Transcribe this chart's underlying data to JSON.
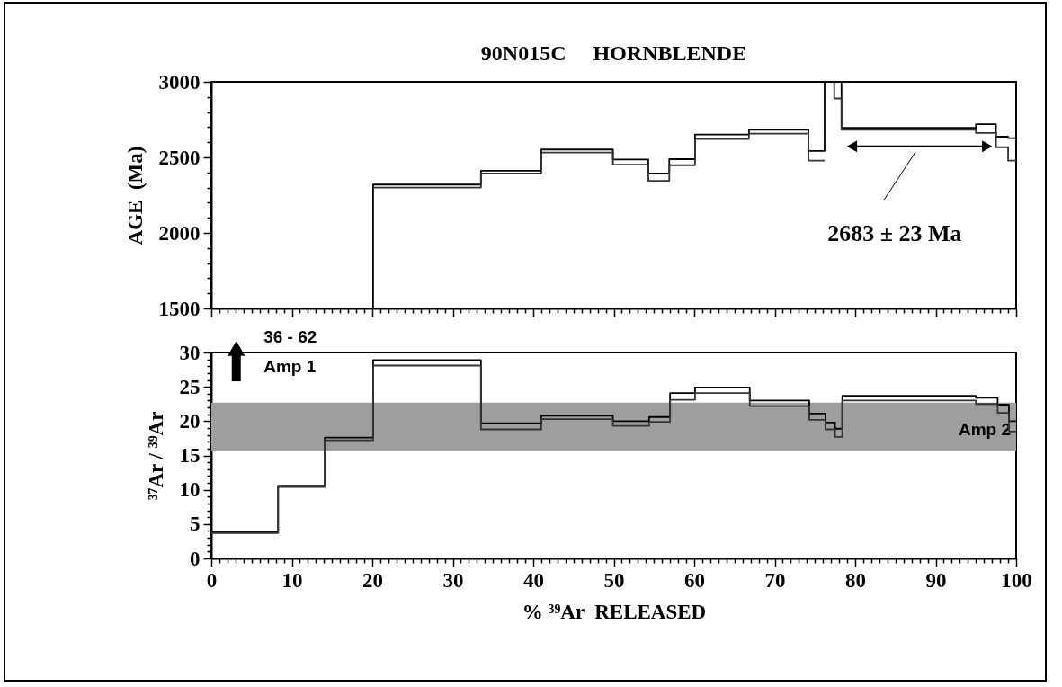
{
  "chart_data": [
    {
      "type": "line",
      "title": "90N015C     HORNBLENDE",
      "ylabel": "AGE  (Ma)",
      "tick_labels": "y",
      "xlim": [
        0,
        100
      ],
      "ylim": [
        1500,
        3000
      ],
      "xticks": [
        0,
        {
          "value": 1,
          "label": null
        },
        {
          "value": 2,
          "label": null
        },
        {
          "value": 3,
          "label": null
        },
        {
          "value": 4,
          "label": null
        },
        {
          "value": 5,
          "label": null
        },
        {
          "value": 6,
          "label": null
        },
        {
          "value": 7,
          "label": null
        },
        {
          "value": 8,
          "label": null
        },
        {
          "value": 9,
          "label": null
        },
        10,
        {
          "value": 11,
          "label": null
        },
        {
          "value": 12,
          "label": null
        },
        {
          "value": 13,
          "label": null
        },
        {
          "value": 14,
          "label": null
        },
        {
          "value": 15,
          "label": null
        },
        {
          "value": 16,
          "label": null
        },
        {
          "value": 17,
          "label": null
        },
        {
          "value": 18,
          "label": null
        },
        {
          "value": 19,
          "label": null
        },
        20,
        {
          "value": 21,
          "label": null
        },
        {
          "value": 22,
          "label": null
        },
        {
          "value": 23,
          "label": null
        },
        {
          "value": 24,
          "label": null
        },
        {
          "value": 25,
          "label": null
        },
        {
          "value": 26,
          "label": null
        },
        {
          "value": 27,
          "label": null
        },
        {
          "value": 28,
          "label": null
        },
        {
          "value": 29,
          "label": null
        },
        30,
        {
          "value": 31,
          "label": null
        },
        {
          "value": 32,
          "label": null
        },
        {
          "value": 33,
          "label": null
        },
        {
          "value": 34,
          "label": null
        },
        {
          "value": 35,
          "label": null
        },
        {
          "value": 36,
          "label": null
        },
        {
          "value": 37,
          "label": null
        },
        {
          "value": 38,
          "label": null
        },
        {
          "value": 39,
          "label": null
        },
        40,
        {
          "value": 41,
          "label": null
        },
        {
          "value": 42,
          "label": null
        },
        {
          "value": 43,
          "label": null
        },
        {
          "value": 44,
          "label": null
        },
        {
          "value": 45,
          "label": null
        },
        {
          "value": 46,
          "label": null
        },
        {
          "value": 47,
          "label": null
        },
        {
          "value": 48,
          "label": null
        },
        {
          "value": 49,
          "label": null
        },
        50,
        {
          "value": 51,
          "label": null
        },
        {
          "value": 52,
          "label": null
        },
        {
          "value": 53,
          "label": null
        },
        {
          "value": 54,
          "label": null
        },
        {
          "value": 55,
          "label": null
        },
        {
          "value": 56,
          "label": null
        },
        {
          "value": 57,
          "label": null
        },
        {
          "value": 58,
          "label": null
        },
        {
          "value": 59,
          "label": null
        },
        60,
        {
          "value": 61,
          "label": null
        },
        {
          "value": 62,
          "label": null
        },
        {
          "value": 63,
          "label": null
        },
        {
          "value": 64,
          "label": null
        },
        {
          "value": 65,
          "label": null
        },
        {
          "value": 66,
          "label": null
        },
        {
          "value": 67,
          "label": null
        },
        {
          "value": 68,
          "label": null
        },
        {
          "value": 69,
          "label": null
        },
        70,
        {
          "value": 71,
          "label": null
        },
        {
          "value": 72,
          "label": null
        },
        {
          "value": 73,
          "label": null
        },
        {
          "value": 74,
          "label": null
        },
        {
          "value": 75,
          "label": null
        },
        {
          "value": 76,
          "label": null
        },
        {
          "value": 77,
          "label": null
        },
        {
          "value": 78,
          "label": null
        },
        {
          "value": 79,
          "label": null
        },
        80,
        {
          "value": 81,
          "label": null
        },
        {
          "value": 82,
          "label": null
        },
        {
          "value": 83,
          "label": null
        },
        {
          "value": 84,
          "label": null
        },
        {
          "value": 85,
          "label": null
        },
        {
          "value": 86,
          "label": null
        },
        {
          "value": 87,
          "label": null
        },
        {
          "value": 88,
          "label": null
        },
        {
          "value": 89,
          "label": null
        },
        90,
        {
          "value": 91,
          "label": null
        },
        {
          "value": 92,
          "label": null
        },
        {
          "value": 93,
          "label": null
        },
        {
          "value": 94,
          "label": null
        },
        {
          "value": 95,
          "label": null
        },
        {
          "value": 96,
          "label": null
        },
        {
          "value": 97,
          "label": null
        },
        {
          "value": 98,
          "label": null
        },
        {
          "value": 99,
          "label": null
        },
        100
      ],
      "yticks": [
        1500,
        {
          "value": 1600,
          "label": null
        },
        {
          "value": 1700,
          "label": null
        },
        {
          "value": 1800,
          "label": null
        },
        {
          "value": 1900,
          "label": null
        },
        2000,
        {
          "value": 2100,
          "label": null
        },
        {
          "value": 2200,
          "label": null
        },
        {
          "value": 2300,
          "label": null
        },
        {
          "value": 2400,
          "label": null
        },
        2500,
        {
          "value": 2600,
          "label": null
        },
        {
          "value": 2700,
          "label": null
        },
        {
          "value": 2800,
          "label": null
        },
        {
          "value": 2900,
          "label": null
        },
        3000
      ],
      "series": [
        {
          "color": "#000000",
          "x": [
            20.1,
            20.1,
            33.5,
            33.5,
            41.0,
            41.0,
            49.9,
            49.9,
            54.3,
            54.3,
            56.9,
            56.9,
            60.1,
            60.1,
            66.8,
            66.8,
            74.2,
            74.2,
            76.2,
            76.2,
            77.0,
            78.3,
            78.3,
            95.0,
            95.0,
            97.5,
            97.5,
            99.0,
            99.0,
            100
          ],
          "values": [
            1500,
            2320,
            2320,
            2411,
            2411,
            2552,
            2552,
            2486,
            2486,
            2393,
            2393,
            2488,
            2488,
            2651,
            2651,
            2683,
            2683,
            2542,
            2542,
            3000,
            null,
            3000,
            2696,
            2696,
            2720,
            2720,
            2637,
            2637,
            2627,
            2627
          ]
        },
        {
          "color": "#333333",
          "x": [
            20.1,
            33.5,
            33.5,
            41.0,
            41.0,
            49.9,
            49.9,
            54.3,
            54.3,
            56.9,
            56.9,
            60.1,
            60.1,
            66.8,
            66.8,
            74.2,
            74.2,
            76.2,
            76.8,
            77.4,
            77.4,
            78.3,
            78.3,
            95.0,
            95.0,
            97.5,
            97.5,
            99.0,
            99.0,
            100
          ],
          "values": [
            2300,
            2300,
            2393,
            2393,
            2532,
            2532,
            2452,
            2452,
            2345,
            2345,
            2448,
            2448,
            2621,
            2621,
            2657,
            2657,
            2478,
            2478,
            null,
            3000,
            2890,
            2890,
            2683,
            2683,
            2661,
            2661,
            2567,
            2567,
            2478,
            2478
          ]
        }
      ],
      "annotations": [
        "2683 ± 23 Ma"
      ]
    },
    {
      "type": "line",
      "xlabel": "% ³⁹Ar  RELEASED",
      "ylabel": "³⁷Ar / ³⁹Ar",
      "xlim": [
        0,
        100
      ],
      "ylim": [
        0,
        30
      ],
      "xticks": [
        0,
        {
          "value": 1,
          "label": null
        },
        {
          "value": 2,
          "label": null
        },
        {
          "value": 3,
          "label": null
        },
        {
          "value": 4,
          "label": null
        },
        {
          "value": 5,
          "label": null
        },
        {
          "value": 6,
          "label": null
        },
        {
          "value": 7,
          "label": null
        },
        {
          "value": 8,
          "label": null
        },
        {
          "value": 9,
          "label": null
        },
        10,
        {
          "value": 11,
          "label": null
        },
        {
          "value": 12,
          "label": null
        },
        {
          "value": 13,
          "label": null
        },
        {
          "value": 14,
          "label": null
        },
        {
          "value": 15,
          "label": null
        },
        {
          "value": 16,
          "label": null
        },
        {
          "value": 17,
          "label": null
        },
        {
          "value": 18,
          "label": null
        },
        {
          "value": 19,
          "label": null
        },
        20,
        {
          "value": 21,
          "label": null
        },
        {
          "value": 22,
          "label": null
        },
        {
          "value": 23,
          "label": null
        },
        {
          "value": 24,
          "label": null
        },
        {
          "value": 25,
          "label": null
        },
        {
          "value": 26,
          "label": null
        },
        {
          "value": 27,
          "label": null
        },
        {
          "value": 28,
          "label": null
        },
        {
          "value": 29,
          "label": null
        },
        30,
        {
          "value": 31,
          "label": null
        },
        {
          "value": 32,
          "label": null
        },
        {
          "value": 33,
          "label": null
        },
        {
          "value": 34,
          "label": null
        },
        {
          "value": 35,
          "label": null
        },
        {
          "value": 36,
          "label": null
        },
        {
          "value": 37,
          "label": null
        },
        {
          "value": 38,
          "label": null
        },
        {
          "value": 39,
          "label": null
        },
        40,
        {
          "value": 41,
          "label": null
        },
        {
          "value": 42,
          "label": null
        },
        {
          "value": 43,
          "label": null
        },
        {
          "value": 44,
          "label": null
        },
        {
          "value": 45,
          "label": null
        },
        {
          "value": 46,
          "label": null
        },
        {
          "value": 47,
          "label": null
        },
        {
          "value": 48,
          "label": null
        },
        {
          "value": 49,
          "label": null
        },
        50,
        {
          "value": 51,
          "label": null
        },
        {
          "value": 52,
          "label": null
        },
        {
          "value": 53,
          "label": null
        },
        {
          "value": 54,
          "label": null
        },
        {
          "value": 55,
          "label": null
        },
        {
          "value": 56,
          "label": null
        },
        {
          "value": 57,
          "label": null
        },
        {
          "value": 58,
          "label": null
        },
        {
          "value": 59,
          "label": null
        },
        60,
        {
          "value": 61,
          "label": null
        },
        {
          "value": 62,
          "label": null
        },
        {
          "value": 63,
          "label": null
        },
        {
          "value": 64,
          "label": null
        },
        {
          "value": 65,
          "label": null
        },
        {
          "value": 66,
          "label": null
        },
        {
          "value": 67,
          "label": null
        },
        {
          "value": 68,
          "label": null
        },
        {
          "value": 69,
          "label": null
        },
        70,
        {
          "value": 71,
          "label": null
        },
        {
          "value": 72,
          "label": null
        },
        {
          "value": 73,
          "label": null
        },
        {
          "value": 74,
          "label": null
        },
        {
          "value": 75,
          "label": null
        },
        {
          "value": 76,
          "label": null
        },
        {
          "value": 77,
          "label": null
        },
        {
          "value": 78,
          "label": null
        },
        {
          "value": 79,
          "label": null
        },
        80,
        {
          "value": 81,
          "label": null
        },
        {
          "value": 82,
          "label": null
        },
        {
          "value": 83,
          "label": null
        },
        {
          "value": 84,
          "label": null
        },
        {
          "value": 85,
          "label": null
        },
        {
          "value": 86,
          "label": null
        },
        {
          "value": 87,
          "label": null
        },
        {
          "value": 88,
          "label": null
        },
        {
          "value": 89,
          "label": null
        },
        90,
        {
          "value": 91,
          "label": null
        },
        {
          "value": 92,
          "label": null
        },
        {
          "value": 93,
          "label": null
        },
        {
          "value": 94,
          "label": null
        },
        {
          "value": 95,
          "label": null
        },
        {
          "value": 96,
          "label": null
        },
        {
          "value": 97,
          "label": null
        },
        {
          "value": 98,
          "label": null
        },
        {
          "value": 99,
          "label": null
        },
        100
      ],
      "yticks": [
        0,
        {
          "value": 1,
          "label": null
        },
        {
          "value": 2,
          "label": null
        },
        {
          "value": 3,
          "label": null
        },
        {
          "value": 4,
          "label": null
        },
        5,
        {
          "value": 6,
          "label": null
        },
        {
          "value": 7,
          "label": null
        },
        {
          "value": 8,
          "label": null
        },
        {
          "value": 9,
          "label": null
        },
        10,
        {
          "value": 11,
          "label": null
        },
        {
          "value": 12,
          "label": null
        },
        {
          "value": 13,
          "label": null
        },
        {
          "value": 14,
          "label": null
        },
        15,
        {
          "value": 16,
          "label": null
        },
        {
          "value": 17,
          "label": null
        },
        {
          "value": 18,
          "label": null
        },
        {
          "value": 19,
          "label": null
        },
        20,
        {
          "value": 21,
          "label": null
        },
        {
          "value": 22,
          "label": null
        },
        {
          "value": 23,
          "label": null
        },
        {
          "value": 24,
          "label": null
        },
        25,
        {
          "value": 26,
          "label": null
        },
        {
          "value": 27,
          "label": null
        },
        {
          "value": 28,
          "label": null
        },
        {
          "value": 29,
          "label": null
        },
        30
      ],
      "series": [
        {
          "color": "#000000",
          "x": [
            0,
            8.3,
            8.3,
            14.1,
            14.1,
            20.1,
            20.1,
            33.5,
            33.5,
            41.0,
            41.0,
            49.9,
            49.9,
            54.4,
            54.4,
            57.0,
            57.0,
            60.1,
            60.1,
            66.9,
            66.9,
            74.3,
            74.3,
            76.3,
            76.3,
            77.5,
            77.5,
            78.4,
            78.4,
            95.0,
            95.0,
            97.7,
            97.7,
            99.1,
            99.1,
            100
          ],
          "values": [
            3.9,
            3.9,
            10.6,
            10.6,
            17.6,
            17.6,
            28.9,
            28.9,
            19.7,
            19.7,
            20.8,
            20.8,
            20.0,
            20.0,
            20.6,
            20.6,
            24.1,
            24.1,
            24.9,
            24.9,
            23.0,
            23.0,
            21.1,
            21.1,
            19.8,
            19.8,
            18.9,
            18.9,
            23.7,
            23.7,
            23.4,
            23.4,
            22.4,
            22.4,
            20.0,
            20.0
          ]
        },
        {
          "color": "#333333",
          "x": [
            0,
            8.3,
            8.3,
            14.1,
            14.1,
            20.1,
            20.1,
            33.5,
            33.5,
            41.0,
            41.0,
            49.9,
            49.9,
            54.4,
            54.4,
            57.0,
            57.0,
            60.1,
            60.1,
            66.9,
            66.9,
            74.3,
            74.3,
            76.3,
            76.3,
            77.5,
            77.5,
            78.4,
            78.4,
            95.0,
            95.0,
            97.7,
            97.7,
            99.1,
            99.1,
            100
          ],
          "values": [
            3.7,
            3.7,
            10.4,
            10.4,
            17.2,
            17.2,
            28.1,
            28.1,
            18.8,
            18.8,
            20.3,
            20.3,
            19.3,
            19.3,
            19.9,
            19.9,
            23.1,
            23.1,
            24.1,
            24.1,
            22.2,
            22.2,
            20.2,
            20.2,
            18.8,
            18.8,
            17.7,
            17.7,
            23.0,
            23.0,
            22.5,
            22.5,
            21.2,
            21.2,
            18.5,
            18.5
          ]
        }
      ],
      "bands": [
        {
          "axis": "y",
          "from": 15.7,
          "to": 22.7,
          "label": "Amp 2",
          "color": "#9e9e9e"
        }
      ],
      "annotations": [
        "36 - 62",
        "Amp 1"
      ]
    }
  ]
}
